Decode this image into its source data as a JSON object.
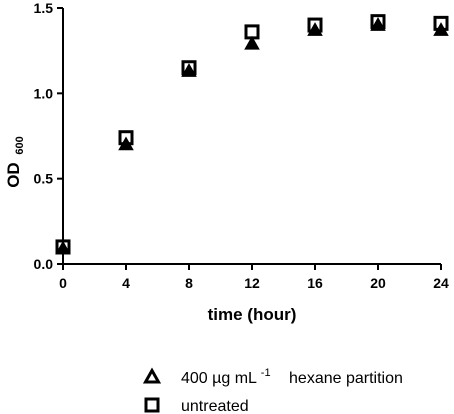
{
  "chart_data": {
    "type": "scatter",
    "xlabel": "time (hour)",
    "ylabel": {
      "main": "OD",
      "sub": "600"
    },
    "xlim": [
      0,
      24
    ],
    "ylim": [
      0,
      1.5
    ],
    "x_ticks": [
      "0",
      "4",
      "8",
      "12",
      "16",
      "20",
      "24"
    ],
    "y_ticks": [
      "0.0",
      "0.5",
      "1.0",
      "1.5"
    ],
    "grid": false,
    "legend_position": "bottom",
    "series": [
      {
        "name": {
          "pre": "400 µg mL",
          "sup": "-1",
          "post": "hexane partition"
        },
        "marker": "triangle",
        "color": "#000000",
        "x": [
          0,
          4,
          8,
          12,
          16,
          20,
          24
        ],
        "y": [
          0.09,
          0.7,
          1.13,
          1.29,
          1.37,
          1.4,
          1.37
        ]
      },
      {
        "name": "untreated",
        "marker": "square-open",
        "color": "#000000",
        "x": [
          0,
          4,
          8,
          12,
          16,
          20,
          24
        ],
        "y": [
          0.1,
          0.74,
          1.15,
          1.36,
          1.4,
          1.42,
          1.41
        ]
      }
    ]
  }
}
